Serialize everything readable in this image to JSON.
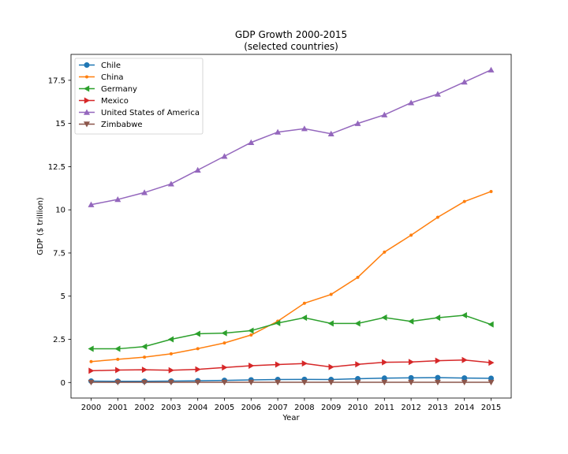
{
  "chart_data": {
    "type": "line",
    "title": "GDP Growth 2000-2015",
    "subtitle": "(selected countries)",
    "xlabel": "Year",
    "ylabel": "GDP ($ trillion)",
    "x": [
      "2000",
      "2001",
      "2002",
      "2003",
      "2004",
      "2005",
      "2006",
      "2007",
      "2008",
      "2009",
      "2010",
      "2011",
      "2012",
      "2013",
      "2014",
      "2015"
    ],
    "ylim": [
      -0.9,
      19.0
    ],
    "yticks": [
      0,
      2.5,
      5,
      7.5,
      10,
      12.5,
      15,
      17.5
    ],
    "ytick_labels": [
      "0",
      "2.5",
      "5",
      "7.5",
      "10",
      "12.5",
      "15",
      "17.5"
    ],
    "grid": false,
    "legend_position": "top-left",
    "series": [
      {
        "name": "Chile",
        "color": "#1f77b4",
        "marker": "circle",
        "values": [
          0.08,
          0.07,
          0.07,
          0.08,
          0.1,
          0.12,
          0.15,
          0.17,
          0.18,
          0.17,
          0.22,
          0.25,
          0.27,
          0.28,
          0.26,
          0.24
        ]
      },
      {
        "name": "China",
        "color": "#ff7f0e",
        "marker": "point",
        "values": [
          1.21,
          1.34,
          1.47,
          1.66,
          1.96,
          2.29,
          2.75,
          3.55,
          4.59,
          5.1,
          6.09,
          7.55,
          8.53,
          9.57,
          10.48,
          11.06
        ]
      },
      {
        "name": "Germany",
        "color": "#2ca02c",
        "marker": "triangle-left",
        "values": [
          1.95,
          1.95,
          2.08,
          2.5,
          2.82,
          2.86,
          3.0,
          3.44,
          3.75,
          3.42,
          3.42,
          3.76,
          3.54,
          3.75,
          3.89,
          3.36
        ]
      },
      {
        "name": "Mexico",
        "color": "#d62728",
        "marker": "triangle-right",
        "values": [
          0.68,
          0.72,
          0.74,
          0.71,
          0.76,
          0.87,
          0.97,
          1.04,
          1.1,
          0.9,
          1.05,
          1.17,
          1.19,
          1.26,
          1.3,
          1.15
        ]
      },
      {
        "name": "United States of America",
        "color": "#9467bd",
        "marker": "triangle-up",
        "values": [
          10.3,
          10.6,
          11.0,
          11.5,
          12.3,
          13.1,
          13.9,
          14.5,
          14.7,
          14.4,
          15.0,
          15.5,
          16.2,
          16.7,
          17.4,
          18.1
        ]
      },
      {
        "name": "Zimbabwe",
        "color": "#8c564b",
        "marker": "triangle-down",
        "values": [
          0.01,
          0.01,
          0.01,
          0.01,
          0.01,
          0.01,
          0.01,
          0.01,
          0.01,
          0.01,
          0.01,
          0.01,
          0.01,
          0.01,
          0.01,
          0.01
        ]
      }
    ]
  }
}
